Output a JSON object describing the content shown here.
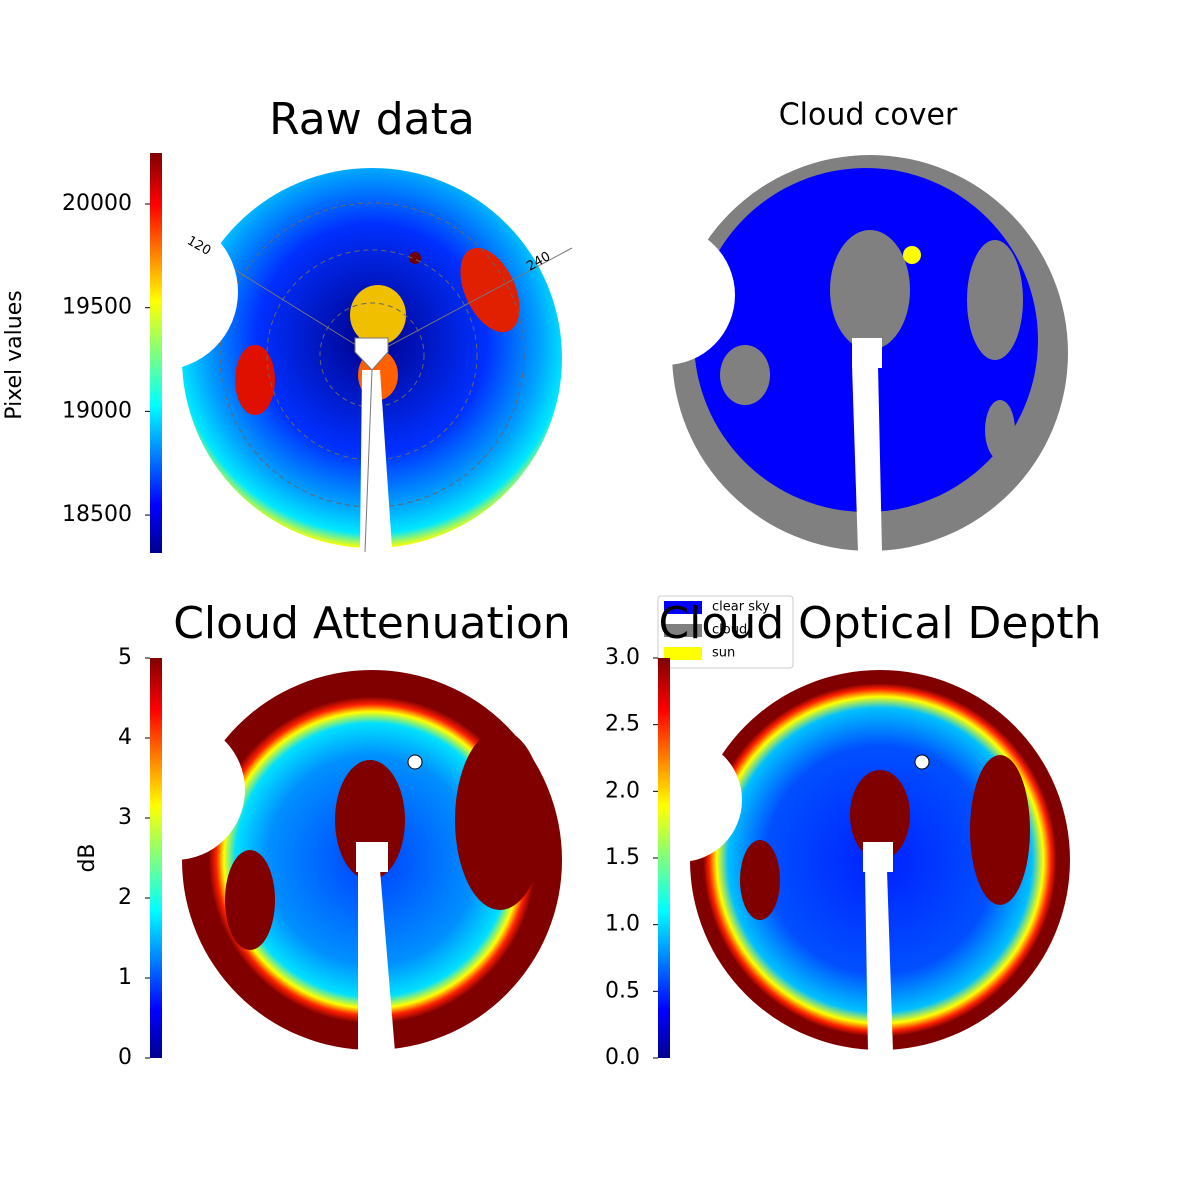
{
  "chart_data": [
    {
      "type": "image",
      "title": "Raw data",
      "ylabel": "Pixel values",
      "ylim": [
        18317,
        20246
      ],
      "yticks": [
        18500,
        19000,
        19500,
        20000
      ],
      "annotations": [
        "120",
        "240"
      ]
    },
    {
      "type": "image",
      "title": "Cloud cover",
      "legend": [
        {
          "name": "clear sky",
          "color": "#0000ff"
        },
        {
          "name": "cloud",
          "color": "#808080"
        },
        {
          "name": "sun",
          "color": "#ffff00"
        }
      ]
    },
    {
      "type": "image",
      "title": "Cloud Attenuation",
      "ylabel": "dB",
      "ylim": [
        0,
        5
      ],
      "yticks": [
        0,
        1,
        2,
        3,
        4,
        5
      ]
    },
    {
      "type": "image",
      "title": "Cloud Optical Depth",
      "ylim": [
        0,
        3
      ],
      "yticks": [
        {
          "value": 0,
          "label": "0.0"
        },
        {
          "value": 0.5,
          "label": "0.5"
        },
        {
          "value": 1,
          "label": "1.0"
        },
        {
          "value": 1.5,
          "label": "1.5"
        },
        {
          "value": 2,
          "label": "2.0"
        },
        {
          "value": 2.5,
          "label": "2.5"
        },
        {
          "value": 3,
          "label": "3.0"
        }
      ]
    }
  ]
}
